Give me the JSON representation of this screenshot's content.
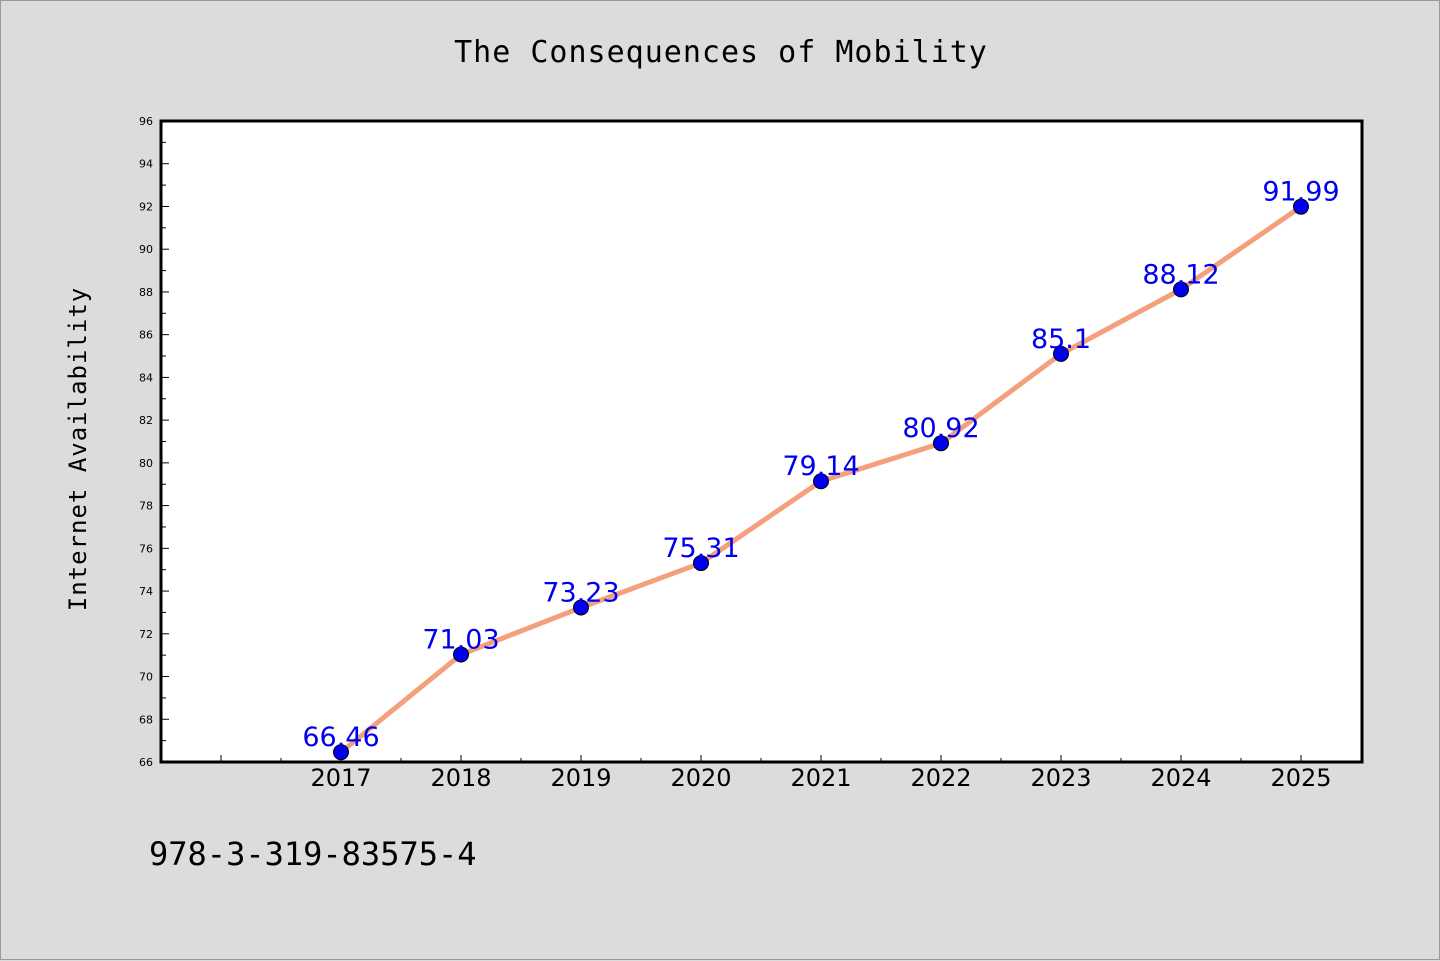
{
  "chart_data": {
    "type": "line",
    "title": "The Consequences of Mobility",
    "xlabel": "",
    "ylabel": "Internet Availability",
    "x": [
      "2017",
      "2018",
      "2019",
      "2020",
      "2021",
      "2022",
      "2023",
      "2024",
      "2025"
    ],
    "series": [
      {
        "values": [
          66.46,
          71.03,
          73.23,
          75.31,
          79.14,
          80.92,
          85.1,
          88.12,
          91.99
        ],
        "labels": [
          "66.46",
          "71.03",
          "73.23",
          "75.31",
          "79.14",
          "80.92",
          "85.1",
          "88.12",
          "91.99"
        ],
        "line_color": "#f4a07c",
        "marker_color": "#0000ee",
        "label_color": "#0000ee"
      }
    ],
    "ylim": [
      66,
      96
    ],
    "y_ticks": [
      "66",
      "68",
      "70",
      "72",
      "74",
      "76",
      "78",
      "80",
      "82",
      "84",
      "86",
      "88",
      "90",
      "92",
      "94",
      "96"
    ],
    "grid": false,
    "legend": "none"
  },
  "footer": {
    "code": "978-3-319-83575-4"
  },
  "colors": {
    "background": "#dcdcdc",
    "plot_background": "#ffffff",
    "axis": "#000000"
  }
}
